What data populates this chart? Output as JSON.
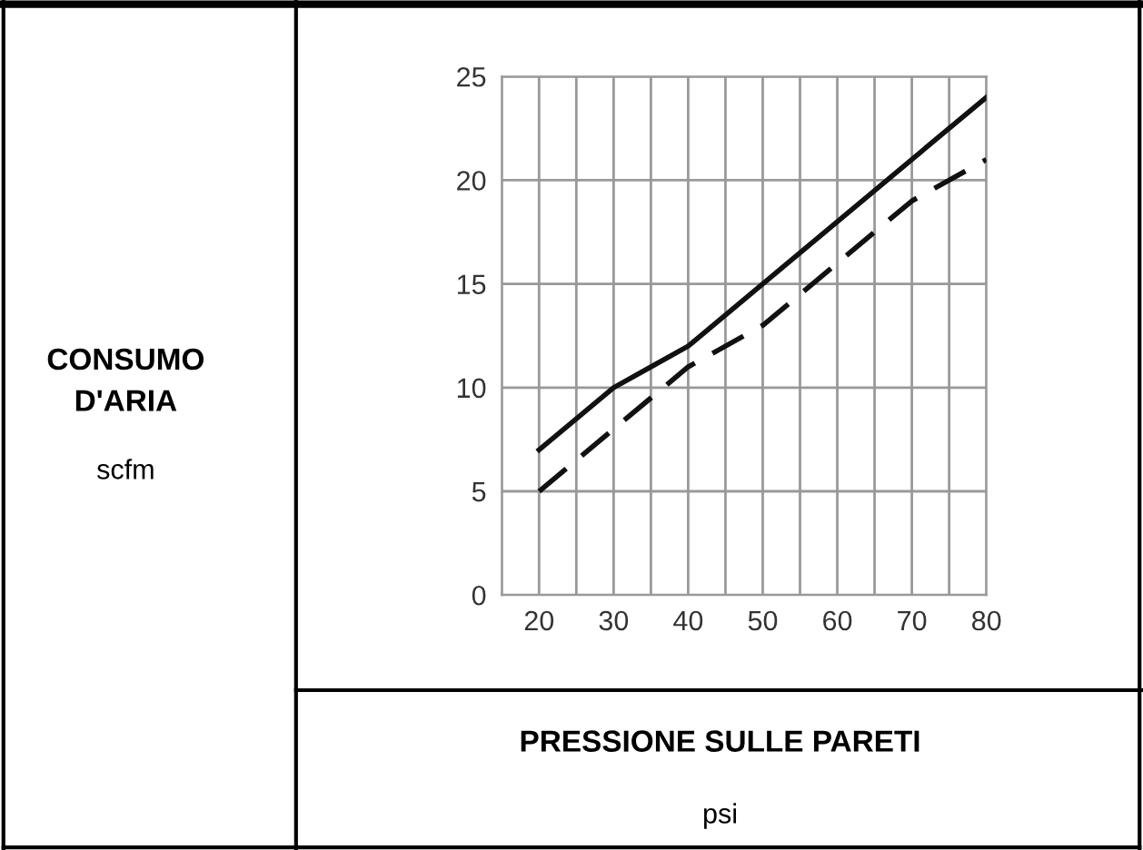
{
  "chart_data": {
    "type": "line",
    "xlabel": "PRESSIONE SULLE PARETI",
    "annotations": [
      "CONSUMO D'ARIA",
      "scfm",
      "psi"
    ],
    "xlim": [
      15,
      80
    ],
    "xticks": [
      {
        "value": 15,
        "label": null
      },
      20,
      {
        "value": 25,
        "label": null
      },
      30,
      {
        "value": 35,
        "label": null
      },
      40,
      {
        "value": 45,
        "label": null
      },
      50,
      {
        "value": 55,
        "label": null
      },
      60,
      {
        "value": 65,
        "label": null
      },
      70,
      {
        "value": 75,
        "label": null
      },
      80
    ],
    "ylim": [
      0,
      25
    ],
    "yticks": [
      0,
      5,
      10,
      15,
      20,
      25
    ],
    "grid": true,
    "series": [
      {
        "color": "#111111",
        "line_style": "solid",
        "x": [
          20,
          30,
          35,
          40,
          50,
          60,
          70,
          80
        ],
        "values": [
          7,
          10,
          11,
          12,
          15,
          18,
          21,
          24
        ]
      },
      {
        "color": "#111111",
        "line_style": "dashed",
        "x": [
          20,
          30,
          40,
          50,
          60,
          70,
          80
        ],
        "values": [
          5,
          8,
          11,
          13,
          16,
          19,
          21
        ]
      }
    ]
  }
}
